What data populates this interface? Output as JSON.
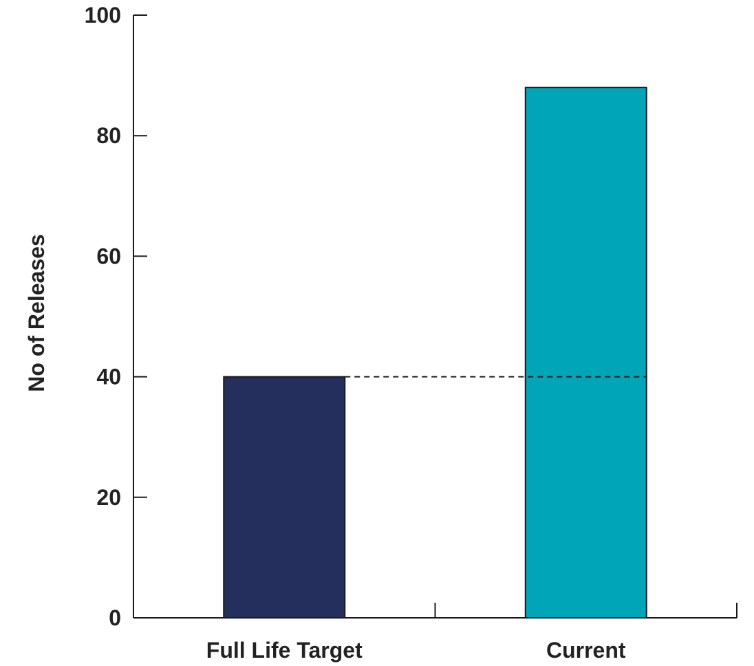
{
  "chart_data": {
    "type": "bar",
    "title": "",
    "xlabel": "",
    "ylabel": "No of Releases",
    "categories": [
      "Full Life Target",
      "Current"
    ],
    "values": [
      40,
      88
    ],
    "bar_colors": [
      "#252f5e",
      "#00a5b8"
    ],
    "ylim": [
      0,
      100
    ],
    "yticks": [
      0,
      20,
      40,
      60,
      80,
      100
    ],
    "reference_line": {
      "value": 40,
      "style": "dashed"
    },
    "grid": false,
    "legend": "none"
  }
}
